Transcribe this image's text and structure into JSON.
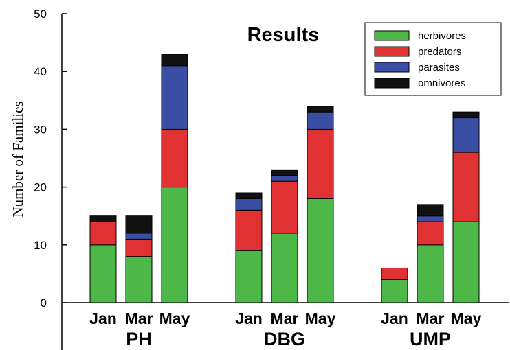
{
  "chart_data": {
    "type": "bar",
    "stacked": true,
    "title": "Results",
    "ylabel": "Number of Families",
    "xlabel": "",
    "ylim": [
      0,
      50
    ],
    "yticks": [
      0,
      10,
      20,
      30,
      40,
      50
    ],
    "groups": [
      {
        "label": "PH",
        "categories": [
          "Jan",
          "Mar",
          "May"
        ]
      },
      {
        "label": "DBG",
        "categories": [
          "Jan",
          "Mar",
          "May"
        ]
      },
      {
        "label": "UMP",
        "categories": [
          "Jan",
          "Mar",
          "May"
        ]
      }
    ],
    "series": [
      {
        "name": "herbivores",
        "color": "#4db848",
        "values": [
          10,
          8,
          20,
          9,
          12,
          18,
          4,
          10,
          14
        ]
      },
      {
        "name": "predators",
        "color": "#e03232",
        "values": [
          4,
          3,
          10,
          7,
          9,
          12,
          2,
          4,
          12
        ]
      },
      {
        "name": "parasites",
        "color": "#3a4ea3",
        "values": [
          0,
          1,
          11,
          2,
          1,
          3,
          0,
          1,
          6
        ]
      },
      {
        "name": "omnivores",
        "color": "#111111",
        "values": [
          1,
          3,
          2,
          1,
          1,
          1,
          0,
          2,
          1
        ]
      }
    ],
    "legend_position": "top-right",
    "grid": false
  }
}
